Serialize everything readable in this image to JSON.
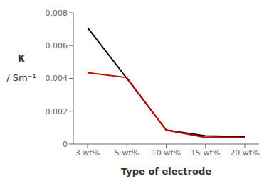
{
  "chart_data": {
    "type": "line",
    "xlabel": "Type of electrode",
    "ylabel": [
      "κ",
      "/ Sm⁻¹"
    ],
    "categories": [
      "3 wt%",
      "5 wt%",
      "10 wt%",
      "15 wt%",
      "20 wt%"
    ],
    "series": [
      {
        "color": "#000000",
        "values": [
          0.0071,
          0.004,
          0.00085,
          0.0005,
          0.00045
        ]
      },
      {
        "color": "#cc0000",
        "values": [
          0.00435,
          0.00405,
          0.00085,
          0.0004,
          0.0004
        ]
      }
    ],
    "ylim": [
      0,
      0.008
    ],
    "yticks": [
      0,
      0.002,
      0.004,
      0.006,
      0.008
    ],
    "grid": false
  }
}
